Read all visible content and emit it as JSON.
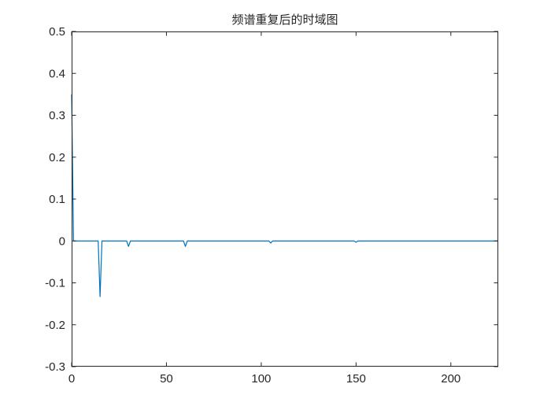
{
  "chart_data": {
    "type": "line",
    "title": "频谱重复后的时域图",
    "xlabel": "",
    "ylabel": "",
    "xlim": [
      0,
      225
    ],
    "ylim": [
      -0.3,
      0.5
    ],
    "xticks": [
      0,
      50,
      100,
      150,
      200
    ],
    "yticks": [
      -0.3,
      -0.2,
      -0.1,
      0,
      0.1,
      0.2,
      0.3,
      0.4,
      0.5
    ],
    "xtick_labels": [
      "0",
      "50",
      "100",
      "150",
      "200"
    ],
    "ytick_labels": [
      "-0.3",
      "-0.2",
      "-0.1",
      "0",
      "0.1",
      "0.2",
      "0.3",
      "0.4",
      "0.5"
    ],
    "grid": false,
    "box": true,
    "line_color": "#0072BD",
    "series": [
      {
        "x": [
          0,
          1,
          2,
          14,
          15,
          16,
          29,
          30,
          31,
          59,
          60,
          61,
          104,
          105,
          106,
          149,
          150,
          151,
          225
        ],
        "y": [
          0.35,
          0.0,
          0.0,
          0.0,
          -0.133,
          0.0,
          0.0,
          -0.013,
          0.0,
          0.0,
          -0.013,
          0.0,
          0.0,
          -0.005,
          0.0,
          0.0,
          -0.003,
          0.0,
          0.0
        ]
      }
    ]
  }
}
